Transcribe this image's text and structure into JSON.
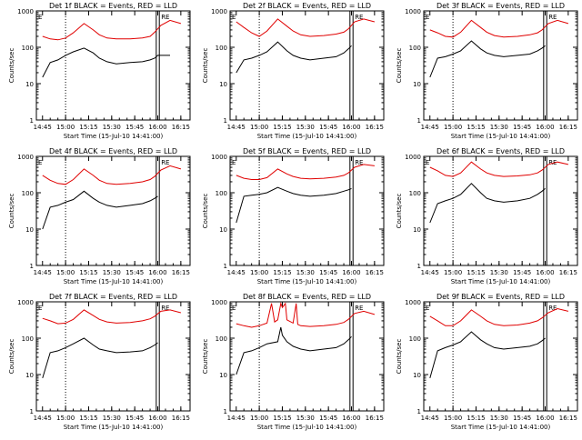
{
  "figure": {
    "background": "#ffffff",
    "axis_color": "#000000",
    "events_color": "#000000",
    "lld_color": "#e00000"
  },
  "chart_data": [
    {
      "type": "line",
      "title": "Det 1f BLACK = Events, RED = LLD",
      "xlabel": "Start Time (15-Jul-10 14:41:00)",
      "ylabel": "Counts/sec",
      "yscale": "log",
      "ylim": [
        1,
        1000
      ],
      "xlim_minutes": [
        0,
        100
      ],
      "xticks": [
        "14:45",
        "15:00",
        "15:15",
        "15:30",
        "15:45",
        "16:00",
        "16:15"
      ],
      "yticks": [
        "1",
        "10",
        "100",
        "1000"
      ],
      "markers": [
        "E",
        "RE"
      ],
      "series": [
        {
          "name": "Events",
          "x": [
            14.45,
            14.5,
            14.55,
            15.0,
            15.05,
            15.12,
            15.18,
            15.22,
            15.27,
            15.33,
            15.42,
            15.5,
            15.55,
            15.58,
            15.6,
            16.08
          ],
          "y": [
            15,
            38,
            45,
            60,
            75,
            95,
            70,
            50,
            40,
            35,
            38,
            40,
            45,
            50,
            60,
            60
          ]
        },
        {
          "name": "LLD",
          "x": [
            14.45,
            14.5,
            14.55,
            15.0,
            15.05,
            15.12,
            15.18,
            15.22,
            15.27,
            15.33,
            15.42,
            15.5,
            15.55,
            15.58,
            15.62,
            16.08,
            16.15
          ],
          "y": [
            200,
            170,
            160,
            180,
            250,
            450,
            300,
            220,
            180,
            170,
            170,
            180,
            200,
            260,
            400,
            550,
            450
          ]
        }
      ]
    },
    {
      "type": "line",
      "title": "Det 2f BLACK = Events, RED = LLD",
      "xlabel": "Start Time (15-Jul-10 14:41:00)",
      "ylabel": "Counts/sec",
      "yscale": "log",
      "ylim": [
        1,
        1000
      ],
      "xticks": [
        "14:45",
        "15:00",
        "15:15",
        "15:30",
        "15:45",
        "16:00",
        "16:15"
      ],
      "yticks": [
        "1",
        "10",
        "100",
        "1000"
      ],
      "markers": [
        "E",
        "RE"
      ],
      "series": [
        {
          "name": "Events",
          "x": [
            14.45,
            14.5,
            14.55,
            15.0,
            15.05,
            15.12,
            15.18,
            15.22,
            15.27,
            15.33,
            15.42,
            15.5,
            15.55,
            15.58,
            15.6
          ],
          "y": [
            20,
            45,
            50,
            60,
            75,
            140,
            80,
            60,
            50,
            45,
            50,
            55,
            70,
            90,
            110
          ]
        },
        {
          "name": "LLD",
          "x": [
            14.45,
            14.5,
            14.55,
            15.0,
            15.05,
            15.12,
            15.18,
            15.22,
            15.27,
            15.33,
            15.42,
            15.5,
            15.55,
            15.58,
            15.62,
            16.08,
            16.15
          ],
          "y": [
            500,
            350,
            250,
            200,
            280,
            600,
            380,
            280,
            220,
            200,
            210,
            230,
            260,
            320,
            500,
            600,
            500
          ]
        }
      ]
    },
    {
      "type": "line",
      "title": "Det 3f BLACK = Events, RED = LLD",
      "xlabel": "Start Time (15-Jul-10 14:41:00)",
      "ylabel": "Counts/sec",
      "yscale": "log",
      "ylim": [
        1,
        1000
      ],
      "xticks": [
        "14:45",
        "15:00",
        "15:15",
        "15:30",
        "15:45",
        "16:00",
        "16:15"
      ],
      "yticks": [
        "1",
        "10",
        "100",
        "1000"
      ],
      "markers": [
        "E",
        "RE"
      ],
      "series": [
        {
          "name": "Events",
          "x": [
            14.45,
            14.5,
            14.55,
            15.0,
            15.05,
            15.12,
            15.18,
            15.22,
            15.27,
            15.33,
            15.42,
            15.5,
            15.55,
            15.58,
            15.6
          ],
          "y": [
            15,
            50,
            55,
            65,
            80,
            150,
            90,
            70,
            60,
            55,
            60,
            65,
            80,
            95,
            110
          ]
        },
        {
          "name": "LLD",
          "x": [
            14.45,
            14.5,
            14.55,
            15.0,
            15.05,
            15.12,
            15.18,
            15.22,
            15.27,
            15.33,
            15.42,
            15.5,
            15.55,
            15.58,
            15.62,
            16.08,
            16.15
          ],
          "y": [
            300,
            250,
            200,
            190,
            260,
            550,
            350,
            260,
            210,
            190,
            200,
            220,
            250,
            300,
            450,
            550,
            450
          ]
        }
      ]
    },
    {
      "type": "line",
      "title": "Det 4f BLACK = Events, RED = LLD",
      "xlabel": "Start Time (15-Jul-10 14:41:00)",
      "ylabel": "Counts/sec",
      "yscale": "log",
      "ylim": [
        1,
        1000
      ],
      "xticks": [
        "14:45",
        "15:00",
        "15:15",
        "15:30",
        "15:45",
        "16:00",
        "16:15"
      ],
      "yticks": [
        "1",
        "10",
        "100",
        "1000"
      ],
      "markers": [
        "E",
        "RE"
      ],
      "series": [
        {
          "name": "Events",
          "x": [
            14.45,
            14.5,
            14.55,
            15.0,
            15.05,
            15.12,
            15.18,
            15.22,
            15.27,
            15.33,
            15.42,
            15.5,
            15.55,
            15.58,
            15.6
          ],
          "y": [
            10,
            40,
            45,
            55,
            65,
            110,
            70,
            55,
            45,
            40,
            45,
            50,
            60,
            70,
            80
          ]
        },
        {
          "name": "LLD",
          "x": [
            14.45,
            14.5,
            14.55,
            15.0,
            15.05,
            15.12,
            15.18,
            15.22,
            15.27,
            15.33,
            15.42,
            15.5,
            15.55,
            15.58,
            15.62,
            16.08,
            16.15
          ],
          "y": [
            300,
            220,
            180,
            170,
            230,
            450,
            300,
            220,
            180,
            170,
            180,
            200,
            230,
            280,
            420,
            550,
            450
          ]
        }
      ]
    },
    {
      "type": "line",
      "title": "Det 5f BLACK = Events, RED = LLD",
      "xlabel": "Start Time (15-Jul-10 14:41:00)",
      "ylabel": "Counts/sec",
      "yscale": "log",
      "ylim": [
        1,
        1000
      ],
      "xticks": [
        "14:45",
        "15:00",
        "15:15",
        "15:30",
        "15:45",
        "16:00",
        "16:15"
      ],
      "yticks": [
        "1",
        "10",
        "100",
        "1000"
      ],
      "markers": [
        "E",
        "RE"
      ],
      "series": [
        {
          "name": "Events",
          "x": [
            14.45,
            14.5,
            14.55,
            15.0,
            15.05,
            15.12,
            15.18,
            15.22,
            15.27,
            15.33,
            15.42,
            15.5,
            15.55,
            15.58,
            15.6
          ],
          "y": [
            15,
            80,
            85,
            90,
            100,
            140,
            110,
            95,
            85,
            80,
            85,
            95,
            110,
            120,
            130
          ]
        },
        {
          "name": "LLD",
          "x": [
            14.45,
            14.5,
            14.55,
            15.0,
            15.05,
            15.12,
            15.18,
            15.22,
            15.27,
            15.33,
            15.42,
            15.5,
            15.55,
            15.58,
            15.62,
            16.08,
            16.15
          ],
          "y": [
            300,
            250,
            230,
            230,
            260,
            450,
            330,
            280,
            250,
            240,
            250,
            270,
            300,
            350,
            500,
            600,
            550
          ]
        }
      ]
    },
    {
      "type": "line",
      "title": "Det 6f BLACK = Events, RED = LLD",
      "xlabel": "Start Time (15-Jul-10 14:41:00)",
      "ylabel": "Counts/sec",
      "yscale": "log",
      "ylim": [
        1,
        1000
      ],
      "xticks": [
        "14:45",
        "15:00",
        "15:15",
        "15:30",
        "15:45",
        "16:00",
        "16:15"
      ],
      "yticks": [
        "1",
        "10",
        "100",
        "1000"
      ],
      "markers": [
        "E",
        "RE"
      ],
      "series": [
        {
          "name": "Events",
          "x": [
            14.45,
            14.5,
            14.55,
            15.0,
            15.05,
            15.12,
            15.18,
            15.22,
            15.27,
            15.33,
            15.42,
            15.5,
            15.55,
            15.58,
            15.6
          ],
          "y": [
            15,
            50,
            60,
            70,
            90,
            180,
            100,
            70,
            60,
            55,
            60,
            70,
            90,
            110,
            130
          ]
        },
        {
          "name": "LLD",
          "x": [
            14.45,
            14.5,
            14.55,
            15.0,
            15.05,
            15.12,
            15.18,
            15.22,
            15.27,
            15.33,
            15.42,
            15.5,
            15.55,
            15.58,
            15.62,
            16.08,
            16.15
          ],
          "y": [
            500,
            400,
            300,
            280,
            350,
            700,
            450,
            350,
            300,
            280,
            290,
            310,
            350,
            420,
            600,
            700,
            600
          ]
        }
      ]
    },
    {
      "type": "line",
      "title": "Det 7f BLACK = Events, RED = LLD",
      "xlabel": "Start Time (15-Jul-10 14:41:00)",
      "ylabel": "Counts/sec",
      "yscale": "log",
      "ylim": [
        1,
        1000
      ],
      "xticks": [
        "14:45",
        "15:00",
        "15:15",
        "15:30",
        "15:45",
        "16:00",
        "16:15"
      ],
      "yticks": [
        "1",
        "10",
        "100",
        "1000"
      ],
      "markers": [
        "E",
        "RE"
      ],
      "series": [
        {
          "name": "Events",
          "x": [
            14.45,
            14.5,
            14.55,
            15.0,
            15.05,
            15.12,
            15.18,
            15.22,
            15.27,
            15.33,
            15.42,
            15.5,
            15.55,
            15.58,
            15.6
          ],
          "y": [
            8,
            40,
            45,
            55,
            70,
            100,
            65,
            50,
            45,
            40,
            42,
            45,
            55,
            65,
            75
          ]
        },
        {
          "name": "LLD",
          "x": [
            14.45,
            14.5,
            14.55,
            15.0,
            15.05,
            15.12,
            15.18,
            15.22,
            15.27,
            15.33,
            15.42,
            15.5,
            15.55,
            15.58,
            15.62,
            16.08,
            16.15
          ],
          "y": [
            350,
            300,
            250,
            260,
            330,
            600,
            420,
            330,
            280,
            260,
            270,
            300,
            340,
            400,
            550,
            600,
            500
          ]
        }
      ]
    },
    {
      "type": "line",
      "title": "Det 8f BLACK = Events, RED = LLD",
      "xlabel": "Start Time (15-Jul-10 14:41:00)",
      "ylabel": "Counts/sec",
      "yscale": "log",
      "ylim": [
        1,
        1000
      ],
      "xticks": [
        "14:45",
        "15:00",
        "15:15",
        "15:30",
        "15:45",
        "16:00",
        "16:15"
      ],
      "yticks": [
        "1",
        "10",
        "100",
        "1000"
      ],
      "markers": [
        "E",
        "RE"
      ],
      "series": [
        {
          "name": "Events",
          "x": [
            14.45,
            14.5,
            14.55,
            15.0,
            15.05,
            15.12,
            15.14,
            15.15,
            15.18,
            15.22,
            15.27,
            15.33,
            15.42,
            15.5,
            15.55,
            15.58,
            15.6
          ],
          "y": [
            10,
            40,
            45,
            55,
            70,
            80,
            200,
            120,
            80,
            60,
            50,
            45,
            50,
            55,
            70,
            90,
            110
          ]
        },
        {
          "name": "LLD",
          "x": [
            14.45,
            14.5,
            14.55,
            15.0,
            15.05,
            15.08,
            15.1,
            15.12,
            15.14,
            15.15,
            15.17,
            15.18,
            15.22,
            15.24,
            15.25,
            15.27,
            15.33,
            15.42,
            15.5,
            15.55,
            15.58,
            15.62,
            16.08,
            16.15
          ],
          "y": [
            250,
            220,
            200,
            220,
            260,
            900,
            280,
            320,
            900,
            700,
            900,
            320,
            260,
            900,
            240,
            220,
            210,
            220,
            240,
            270,
            330,
            480,
            550,
            450
          ]
        }
      ]
    },
    {
      "type": "line",
      "title": "Det 9f BLACK = Events, RED = LLD",
      "xlabel": "Start Time (15-Jul-10 14:41:00)",
      "ylabel": "Counts/sec",
      "yscale": "log",
      "ylim": [
        1,
        1000
      ],
      "xticks": [
        "14:45",
        "15:00",
        "15:15",
        "15:30",
        "15:45",
        "16:00",
        "16:15"
      ],
      "yticks": [
        "1",
        "10",
        "100",
        "1000"
      ],
      "markers": [
        "E",
        "RE"
      ],
      "series": [
        {
          "name": "Events",
          "x": [
            14.45,
            14.5,
            14.55,
            15.0,
            15.05,
            15.12,
            15.18,
            15.22,
            15.27,
            15.33,
            15.42,
            15.5,
            15.55,
            15.58,
            15.6
          ],
          "y": [
            8,
            45,
            55,
            65,
            80,
            150,
            90,
            70,
            55,
            50,
            55,
            60,
            70,
            85,
            100
          ]
        },
        {
          "name": "LLD",
          "x": [
            14.45,
            14.5,
            14.55,
            15.0,
            15.05,
            15.12,
            15.18,
            15.22,
            15.27,
            15.33,
            15.42,
            15.5,
            15.55,
            15.58,
            15.62,
            16.08,
            16.15
          ],
          "y": [
            400,
            300,
            220,
            220,
            300,
            600,
            400,
            300,
            240,
            220,
            230,
            260,
            300,
            360,
            500,
            650,
            550
          ]
        }
      ]
    }
  ]
}
